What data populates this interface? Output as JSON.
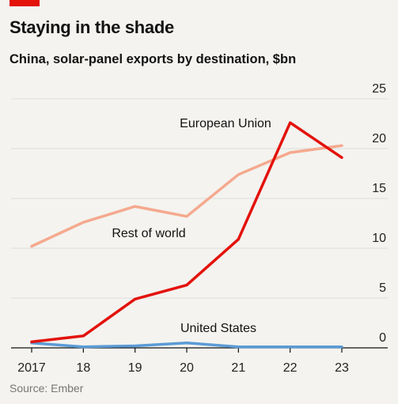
{
  "header": {
    "title": "Staying in the shade",
    "subtitle": "China, solar-panel exports by destination, $bn"
  },
  "footer": {
    "source": "Source: Ember"
  },
  "colors": {
    "brand": "#e3120b",
    "eu": "#e3120b",
    "row": "#f5a98e",
    "us": "#5b9bd5",
    "grid": "#dcdcdc",
    "axis": "#121212"
  },
  "chart_data": {
    "type": "line",
    "title": "Staying in the shade",
    "subtitle": "China, solar-panel exports by destination, $bn",
    "x": [
      "2017",
      "18",
      "19",
      "20",
      "21",
      "22",
      "23"
    ],
    "y_ticks": [
      0,
      5,
      10,
      15,
      20,
      25
    ],
    "ylim": [
      0,
      25
    ],
    "grid": true,
    "y_axis_side": "right",
    "series": [
      {
        "name": "European Union",
        "color": "#e3120b",
        "values": [
          0.6,
          1.2,
          4.9,
          6.3,
          10.9,
          22.6,
          19.1
        ]
      },
      {
        "name": "Rest of world",
        "color": "#f5a98e",
        "values": [
          10.2,
          12.6,
          14.2,
          13.2,
          17.4,
          19.6,
          20.3
        ]
      },
      {
        "name": "United States",
        "color": "#5b9bd5",
        "values": [
          0.5,
          0.1,
          0.2,
          0.5,
          0.1,
          0.1,
          0.1
        ]
      }
    ],
    "source": "Source: Ember"
  }
}
